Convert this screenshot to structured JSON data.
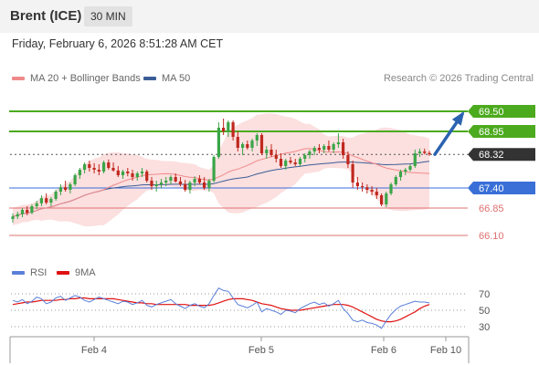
{
  "header": {
    "title": "Brent (ICE)",
    "timeframe": "30 MIN"
  },
  "datetime": "Friday, February 6, 2026 8:51:28 AM CET",
  "legend": {
    "ma20_label": "MA 20 + Bollinger Bands",
    "ma20_color": "#f08a8a",
    "ma50_label": "MA 50",
    "ma50_color": "#3b5d96"
  },
  "credit": "Research © 2026 Trading Central",
  "rsi_legend": {
    "rsi_label": "RSI",
    "rsi_color": "#5a7fd8",
    "ma_label": "9MA",
    "ma_color": "#e01010"
  },
  "colors": {
    "up": "#3aa548",
    "down": "#c0281e",
    "resistance": "#4caa1e",
    "pivot": "#3a6fd8",
    "support": "#e07070",
    "current": "#333333",
    "arrow": "#2a62b0"
  },
  "chart_data": [
    {
      "type": "candlestick",
      "ylim": [
        65.75,
        70.15
      ],
      "x_ticks": [
        "Feb 4",
        "Feb 5",
        "Feb 6",
        "Feb 10"
      ],
      "levels": [
        {
          "value": "69.50",
          "kind": "resistance"
        },
        {
          "value": "68.95",
          "kind": "resistance"
        },
        {
          "value": "68.32",
          "kind": "current"
        },
        {
          "value": "67.40",
          "kind": "pivot"
        },
        {
          "value": "66.85",
          "kind": "support"
        },
        {
          "value": "66.10",
          "kind": "support"
        }
      ],
      "candles": [
        [
          66.55,
          66.7,
          66.45,
          66.62
        ],
        [
          66.62,
          66.75,
          66.55,
          66.68
        ],
        [
          66.68,
          66.85,
          66.6,
          66.8
        ],
        [
          66.8,
          66.9,
          66.65,
          66.72
        ],
        [
          66.72,
          66.95,
          66.68,
          66.9
        ],
        [
          66.9,
          67.05,
          66.82,
          66.98
        ],
        [
          66.98,
          67.2,
          66.9,
          67.12
        ],
        [
          67.12,
          67.25,
          66.95,
          67.0
        ],
        [
          67.0,
          67.15,
          66.9,
          67.1
        ],
        [
          67.1,
          67.35,
          67.05,
          67.3
        ],
        [
          67.3,
          67.5,
          67.2,
          67.42
        ],
        [
          67.42,
          67.6,
          67.3,
          67.35
        ],
        [
          67.35,
          67.55,
          67.25,
          67.5
        ],
        [
          67.5,
          67.8,
          67.45,
          67.75
        ],
        [
          67.75,
          67.95,
          67.65,
          67.9
        ],
        [
          67.9,
          68.1,
          67.8,
          68.05
        ],
        [
          68.05,
          68.15,
          67.85,
          67.95
        ],
        [
          67.95,
          68.08,
          67.8,
          67.9
        ],
        [
          67.9,
          68.05,
          67.75,
          67.85
        ],
        [
          67.85,
          68.15,
          67.8,
          68.1
        ],
        [
          68.1,
          68.18,
          67.9,
          67.95
        ],
        [
          67.95,
          68.1,
          67.85,
          67.88
        ],
        [
          67.88,
          68.0,
          67.7,
          67.75
        ],
        [
          67.75,
          67.9,
          67.65,
          67.85
        ],
        [
          67.85,
          67.95,
          67.72,
          67.8
        ],
        [
          67.8,
          67.9,
          67.6,
          67.7
        ],
        [
          67.7,
          67.85,
          67.6,
          67.8
        ],
        [
          67.8,
          67.95,
          67.7,
          67.85
        ],
        [
          67.85,
          67.9,
          67.55,
          67.6
        ],
        [
          67.6,
          67.7,
          67.35,
          67.45
        ],
        [
          67.45,
          67.6,
          67.3,
          67.5
        ],
        [
          67.5,
          67.65,
          67.4,
          67.55
        ],
        [
          67.55,
          67.7,
          67.45,
          67.6
        ],
        [
          67.6,
          67.75,
          67.5,
          67.7
        ],
        [
          67.7,
          67.8,
          67.55,
          67.58
        ],
        [
          67.58,
          67.7,
          67.45,
          67.5
        ],
        [
          67.5,
          67.62,
          67.3,
          67.35
        ],
        [
          67.35,
          67.6,
          67.25,
          67.55
        ],
        [
          67.55,
          67.72,
          67.45,
          67.65
        ],
        [
          67.65,
          67.75,
          67.5,
          67.55
        ],
        [
          67.55,
          67.7,
          67.35,
          67.4
        ],
        [
          67.4,
          67.65,
          67.3,
          67.6
        ],
        [
          67.6,
          68.3,
          67.55,
          68.25
        ],
        [
          68.25,
          69.2,
          68.2,
          69.05
        ],
        [
          69.05,
          69.3,
          68.85,
          68.95
        ],
        [
          68.95,
          69.25,
          68.8,
          69.2
        ],
        [
          69.2,
          69.25,
          68.7,
          68.8
        ],
        [
          68.8,
          68.95,
          68.4,
          68.5
        ],
        [
          68.5,
          68.65,
          68.3,
          68.6
        ],
        [
          68.6,
          68.7,
          68.45,
          68.5
        ],
        [
          68.5,
          68.75,
          68.4,
          68.7
        ],
        [
          68.7,
          68.9,
          68.55,
          68.85
        ],
        [
          68.85,
          68.9,
          68.3,
          68.35
        ],
        [
          68.35,
          68.55,
          68.2,
          68.45
        ],
        [
          68.45,
          68.6,
          68.25,
          68.3
        ],
        [
          68.3,
          68.45,
          68.1,
          68.2
        ],
        [
          68.2,
          68.35,
          67.95,
          68.0
        ],
        [
          68.0,
          68.2,
          67.9,
          68.15
        ],
        [
          68.15,
          68.25,
          68.05,
          68.1
        ],
        [
          68.1,
          68.2,
          68.0,
          68.05
        ],
        [
          68.05,
          68.25,
          68.0,
          68.2
        ],
        [
          68.2,
          68.35,
          68.1,
          68.3
        ],
        [
          68.3,
          68.45,
          68.2,
          68.4
        ],
        [
          68.4,
          68.55,
          68.3,
          68.5
        ],
        [
          68.5,
          68.6,
          68.35,
          68.45
        ],
        [
          68.45,
          68.6,
          68.35,
          68.55
        ],
        [
          68.55,
          68.7,
          68.4,
          68.45
        ],
        [
          68.45,
          68.65,
          68.35,
          68.6
        ],
        [
          68.6,
          68.9,
          68.5,
          68.65
        ],
        [
          68.65,
          68.75,
          68.2,
          68.3
        ],
        [
          68.3,
          68.4,
          67.95,
          68.05
        ],
        [
          68.05,
          68.15,
          67.4,
          67.55
        ],
        [
          67.55,
          67.7,
          67.35,
          67.45
        ],
        [
          67.45,
          67.55,
          67.3,
          67.42
        ],
        [
          67.42,
          67.5,
          67.25,
          67.35
        ],
        [
          67.35,
          67.45,
          67.2,
          67.3
        ],
        [
          67.3,
          67.4,
          67.1,
          67.2
        ],
        [
          67.2,
          67.25,
          66.9,
          66.95
        ],
        [
          66.95,
          67.3,
          66.88,
          67.25
        ],
        [
          67.25,
          67.55,
          67.2,
          67.5
        ],
        [
          67.5,
          67.75,
          67.45,
          67.7
        ],
        [
          67.7,
          67.9,
          67.6,
          67.85
        ],
        [
          67.85,
          67.95,
          67.75,
          67.9
        ],
        [
          67.9,
          68.05,
          67.85,
          68.0
        ],
        [
          68.0,
          68.45,
          67.95,
          68.35
        ],
        [
          68.35,
          68.48,
          68.25,
          68.4
        ],
        [
          68.4,
          68.48,
          68.32,
          68.36
        ],
        [
          68.36,
          68.42,
          68.28,
          68.32
        ]
      ],
      "indicators": [
        "MA 20",
        "Bollinger Bands",
        "MA 50"
      ]
    },
    {
      "type": "line",
      "name": "RSI",
      "ylim": [
        20,
        80
      ],
      "y_ticks": [
        "70",
        "50",
        "30"
      ],
      "series": [
        {
          "name": "RSI",
          "values": [
            62,
            60,
            63,
            58,
            61,
            66,
            64,
            58,
            60,
            65,
            67,
            62,
            65,
            68,
            66,
            62,
            60,
            63,
            66,
            64,
            62,
            60,
            58,
            61,
            60,
            57,
            59,
            62,
            56,
            54,
            57,
            59,
            61,
            63,
            58,
            55,
            52,
            56,
            58,
            55,
            53,
            58,
            68,
            77,
            74,
            73,
            65,
            57,
            55,
            53,
            56,
            60,
            48,
            52,
            50,
            48,
            45,
            50,
            49,
            47,
            52,
            55,
            58,
            60,
            57,
            59,
            55,
            58,
            62,
            52,
            46,
            38,
            36,
            38,
            35,
            34,
            32,
            28,
            37,
            45,
            51,
            55,
            57,
            59,
            61,
            60,
            60,
            59
          ]
        },
        {
          "name": "9MA",
          "values": [
            57,
            58,
            59,
            60,
            60,
            61,
            62,
            62,
            62,
            62,
            63,
            63,
            64,
            64,
            65,
            65,
            64,
            64,
            64,
            64,
            64,
            64,
            63,
            62,
            61,
            60,
            59,
            59,
            58,
            58,
            57,
            57,
            57,
            57,
            57,
            57,
            57,
            56,
            56,
            56,
            56,
            56,
            57,
            59,
            61,
            63,
            64,
            64,
            64,
            63,
            62,
            60,
            58,
            57,
            56,
            54,
            52,
            51,
            50,
            50,
            50,
            51,
            52,
            53,
            54,
            55,
            56,
            57,
            57,
            57,
            56,
            54,
            51,
            48,
            45,
            42,
            39,
            37,
            36,
            36,
            37,
            39,
            42,
            45,
            48,
            52,
            55,
            57
          ]
        }
      ]
    }
  ]
}
